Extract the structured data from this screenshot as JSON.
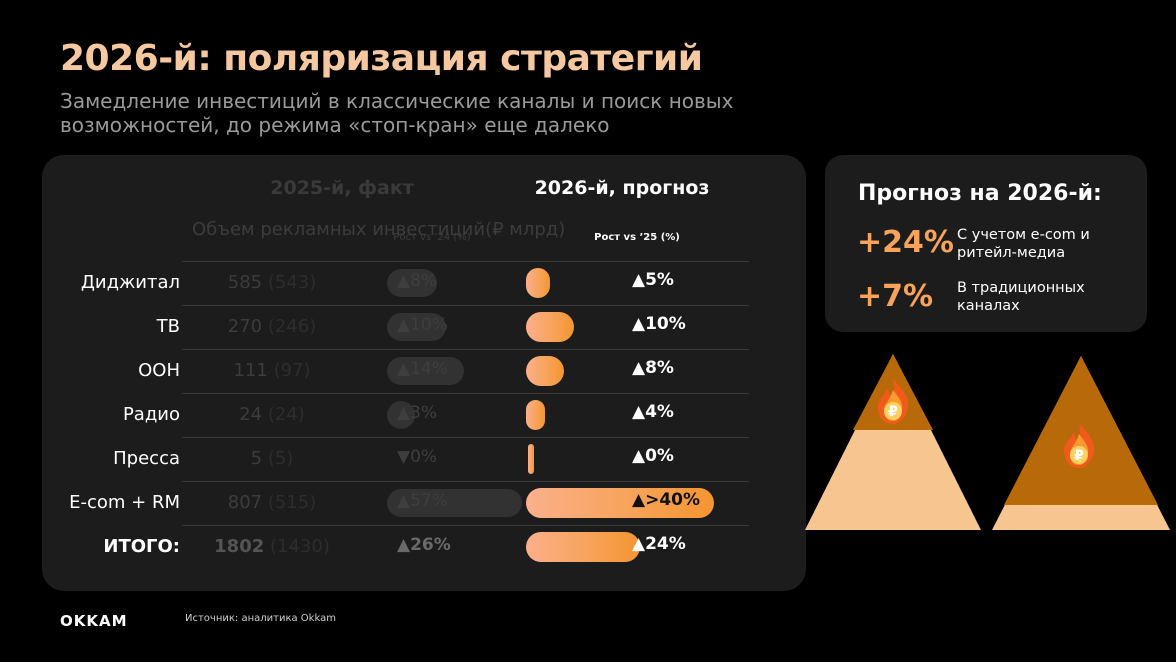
{
  "title": "2026-й: поляризация стратегий",
  "subtitle": "Замедление инвестиций в классические каналы и поиск новых возможностей, до режима «стоп-кран» еще далеко",
  "table": {
    "header_fact": "2025-й, факт",
    "header_forecast": "2026-й, прогноз",
    "sub_volume": "Объем рекламных инвестиций(₽ млрд)",
    "sub_growth_fact": "Рост vs ’24 (%)",
    "sub_growth_forecast": "Рост vs ’25 (%)"
  },
  "chart_data": {
    "type": "table",
    "rows": [
      {
        "category": "Диджитал",
        "vol_2025": "585",
        "vol_2024": "(543)",
        "growth_2025": "▲8%",
        "growth_2025_pct": 8,
        "growth_2026": "▲5%",
        "growth_2026_pct": 5
      },
      {
        "category": "ТВ",
        "vol_2025": "270",
        "vol_2024": "(246)",
        "growth_2025": "▲10%",
        "growth_2025_pct": 10,
        "growth_2026": "▲10%",
        "growth_2026_pct": 10
      },
      {
        "category": "ООН",
        "vol_2025": "111",
        "vol_2024": "(97)",
        "growth_2025": "▲14%",
        "growth_2025_pct": 14,
        "growth_2026": "▲8%",
        "growth_2026_pct": 8
      },
      {
        "category": "Радио",
        "vol_2025": "24",
        "vol_2024": "(24)",
        "growth_2025": "▲3%",
        "growth_2025_pct": 3,
        "growth_2026": "▲4%",
        "growth_2026_pct": 4
      },
      {
        "category": "Пресса",
        "vol_2025": "5",
        "vol_2024": "(5)",
        "growth_2025": "▼0%",
        "growth_2025_pct": 0,
        "growth_2026": "▲0%",
        "growth_2026_pct": 0
      },
      {
        "category": "E-com + RM",
        "vol_2025": "807",
        "vol_2024": "(515)",
        "growth_2025": "▲57%",
        "growth_2025_pct": 57,
        "growth_2026": "▲>40%",
        "growth_2026_pct": 40
      },
      {
        "category": "ИТОГО:",
        "vol_2025": "1802",
        "vol_2024": "(1430)",
        "growth_2025": "▲26%",
        "growth_2025_pct": 26,
        "growth_2026": "▲24%",
        "growth_2026_pct": 24
      }
    ]
  },
  "forecast": {
    "title": "Прогноз на 2026-й:",
    "items": [
      {
        "value": "+24%",
        "text": "С учетом e-com и ритейл-медиа"
      },
      {
        "value": "+7%",
        "text": "В традиционных каналах"
      }
    ]
  },
  "footer": {
    "logo": "OKKAM",
    "source": "Источник: аналитика Okkam"
  },
  "colors": {
    "accent": "#f7a35a",
    "title": "#f5c8a0",
    "panel": "#1c1c1c",
    "pyramid_dark": "#b8690a",
    "pyramid_light": "#f6c590"
  },
  "icons": [
    "flame-ruble-icon"
  ]
}
